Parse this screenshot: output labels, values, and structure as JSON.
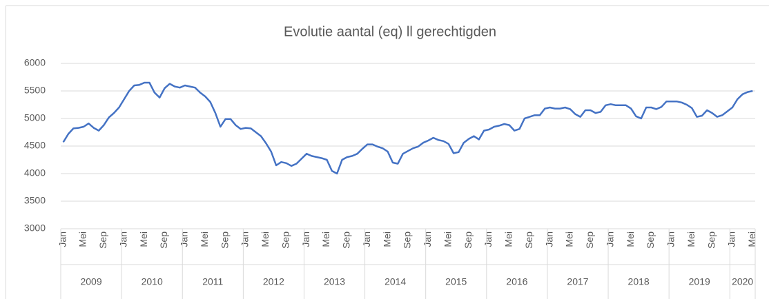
{
  "chart_data": {
    "type": "line",
    "title": "Evolutie aantal (eq) ll gerechtigden",
    "categories": [
      "Jan",
      null,
      null,
      null,
      "Mei",
      null,
      null,
      null,
      "Sep",
      null,
      null,
      null,
      "Jan",
      null,
      null,
      null,
      "Mei",
      null,
      null,
      null,
      "Sep",
      null,
      null,
      null,
      "Jan",
      null,
      null,
      null,
      "Mei",
      null,
      null,
      null,
      "Sep",
      null,
      null,
      null,
      "Jan",
      null,
      null,
      null,
      "Mei",
      null,
      null,
      null,
      "Sep",
      null,
      null,
      null,
      "Jan",
      null,
      null,
      null,
      "Mei",
      null,
      null,
      null,
      "Sep",
      null,
      null,
      null,
      "Jan",
      null,
      null,
      null,
      "Mei",
      null,
      null,
      null,
      "Sep",
      null,
      null,
      null,
      "Jan",
      null,
      null,
      null,
      "Mei",
      null,
      null,
      null,
      "Sep",
      null,
      null,
      null,
      "Jan",
      null,
      null,
      null,
      "Mei",
      null,
      null,
      null,
      "Sep",
      null,
      null,
      null,
      "Jan",
      null,
      null,
      null,
      "Mei",
      null,
      null,
      null,
      "Sep",
      null,
      null,
      null,
      "Jan",
      null,
      null,
      null,
      "Mei",
      null,
      null,
      null,
      "Sep",
      null,
      null,
      null,
      "Jan",
      null,
      null,
      null,
      "Mei",
      null,
      null,
      null,
      "Sep",
      null,
      null,
      null,
      "Jan",
      null,
      null,
      null,
      "Mei"
    ],
    "years": [
      "2009",
      "2010",
      "2011",
      "2012",
      "2013",
      "2014",
      "2015",
      "2016",
      "2017",
      "2018",
      "2019",
      "2020"
    ],
    "values": [
      4570,
      4720,
      4820,
      4830,
      4850,
      4910,
      4830,
      4780,
      4880,
      5020,
      5100,
      5200,
      5350,
      5500,
      5600,
      5610,
      5650,
      5650,
      5470,
      5380,
      5550,
      5630,
      5580,
      5560,
      5600,
      5580,
      5560,
      5470,
      5400,
      5300,
      5100,
      4850,
      4990,
      4990,
      4880,
      4810,
      4830,
      4820,
      4750,
      4680,
      4550,
      4400,
      4150,
      4210,
      4190,
      4140,
      4180,
      4270,
      4360,
      4320,
      4300,
      4280,
      4250,
      4050,
      4000,
      4250,
      4300,
      4320,
      4360,
      4450,
      4530,
      4530,
      4490,
      4460,
      4400,
      4200,
      4180,
      4360,
      4410,
      4460,
      4490,
      4560,
      4600,
      4650,
      4610,
      4590,
      4540,
      4370,
      4390,
      4560,
      4630,
      4680,
      4620,
      4780,
      4800,
      4850,
      4870,
      4900,
      4880,
      4780,
      4810,
      5000,
      5030,
      5060,
      5060,
      5180,
      5200,
      5180,
      5180,
      5200,
      5170,
      5080,
      5030,
      5150,
      5150,
      5100,
      5120,
      5240,
      5260,
      5240,
      5240,
      5240,
      5180,
      5040,
      5000,
      5200,
      5200,
      5170,
      5210,
      5310,
      5310,
      5310,
      5290,
      5250,
      5190,
      5030,
      5050,
      5150,
      5100,
      5030,
      5060,
      5130,
      5200,
      5350,
      5440,
      5480,
      5500
    ],
    "color": "#4472c4",
    "ylim": [
      3000,
      6000
    ],
    "yticks": [
      3000,
      3500,
      4000,
      4500,
      5000,
      5500,
      6000
    ],
    "grid": true
  }
}
